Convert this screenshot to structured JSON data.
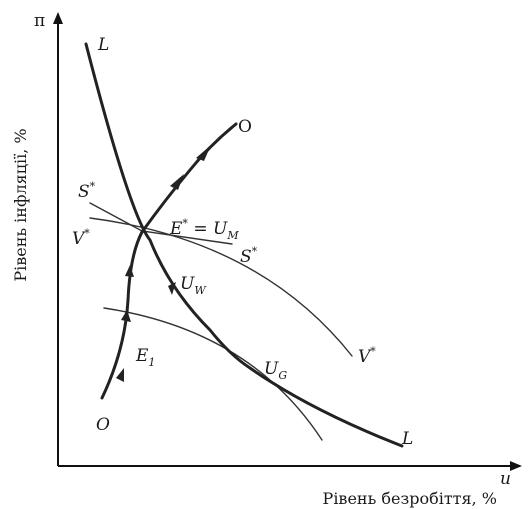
{
  "axes": {
    "y_symbol": "π",
    "y_title": "Рівень інфляції, %",
    "x_symbol": "u",
    "x_title": "Рівень безробіття, %"
  },
  "curves": {
    "L_top": "L",
    "L_bottom": "L",
    "O_top": "O",
    "O_bottom": "O",
    "S_left": "S",
    "S_right": "S",
    "V_left": "V",
    "V_right": "V",
    "star": "*"
  },
  "points": {
    "E_star": {
      "main": "E",
      "star": "*",
      "eq": " = U",
      "sub": "M"
    },
    "U_W": {
      "main": "U",
      "sub": "W"
    },
    "E_1": {
      "main": "E",
      "sub": "1"
    },
    "U_G": {
      "main": "U",
      "sub": "G"
    }
  }
}
